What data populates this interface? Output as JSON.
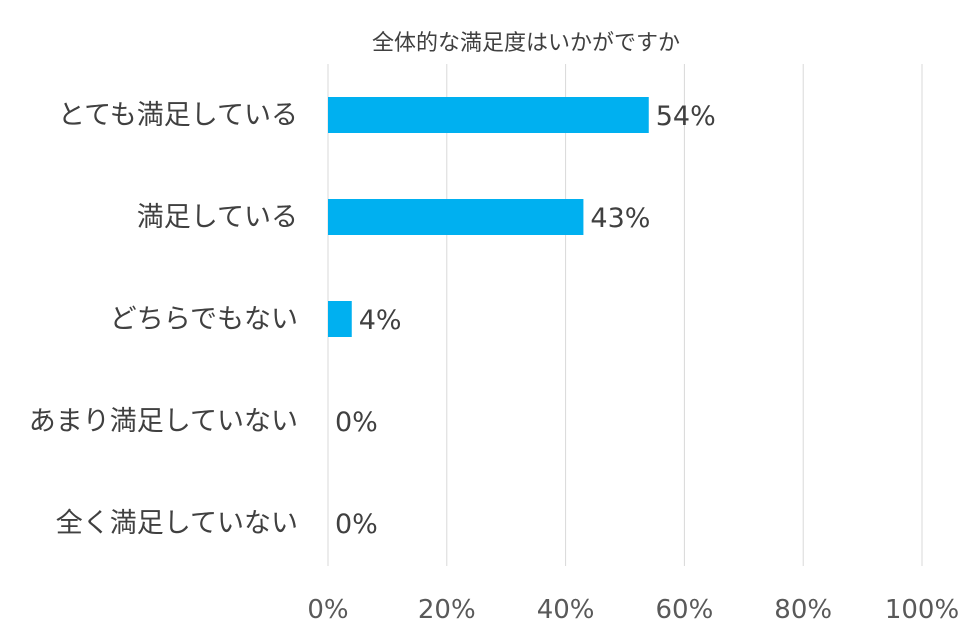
{
  "chart_data": {
    "type": "bar",
    "orientation": "horizontal",
    "title": "全体的な満足度はいかがですか",
    "categories": [
      "とても満足している",
      "満足している",
      "どちらでもない",
      "あまり満足していない",
      "全く満足していない"
    ],
    "values": [
      54,
      43,
      4,
      0,
      0
    ],
    "value_labels": [
      "54%",
      "43%",
      "4%",
      "0%",
      "0%"
    ],
    "xlim": [
      0,
      100
    ],
    "xticks": [
      0,
      20,
      40,
      60,
      80,
      100
    ],
    "xtick_labels": [
      "0%",
      "20%",
      "40%",
      "60%",
      "80%",
      "100%"
    ],
    "xlabel": "",
    "ylabel": "",
    "grid": "vertical",
    "legend": "none",
    "bar_color": "#00B0F0"
  }
}
